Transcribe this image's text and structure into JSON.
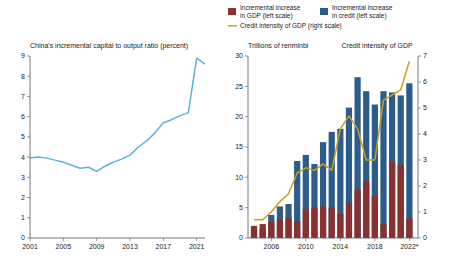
{
  "chart_data": [
    {
      "type": "line",
      "title": "China's incremental capital to output ratio (percent)",
      "x": [
        2001,
        2002,
        2003,
        2004,
        2005,
        2006,
        2007,
        2008,
        2009,
        2010,
        2011,
        2012,
        2013,
        2014,
        2015,
        2016,
        2017,
        2018,
        2019,
        2020,
        2021,
        2022
      ],
      "values": [
        3.95,
        4.0,
        3.95,
        3.85,
        3.75,
        3.6,
        3.45,
        3.5,
        3.3,
        3.55,
        3.75,
        3.9,
        4.1,
        4.5,
        4.8,
        5.2,
        5.7,
        5.85,
        6.05,
        6.2,
        8.9,
        8.6
      ],
      "color": "#5ab4d6",
      "xlim": [
        2001,
        2022
      ],
      "xticks": [
        2001,
        2005,
        2009,
        2013,
        2017,
        2021
      ],
      "ylim": [
        0,
        9
      ],
      "yticks": [
        0,
        1,
        2,
        3,
        4,
        5,
        6,
        7,
        8,
        9
      ],
      "grid": false
    },
    {
      "type": "bar",
      "ylabel": "Trillions of renminbi",
      "y2label": "Credit intensity of GDP",
      "x": [
        2004,
        2005,
        2006,
        2007,
        2008,
        2009,
        2010,
        2011,
        2012,
        2013,
        2014,
        2015,
        2016,
        2017,
        2018,
        2019,
        2020,
        2021,
        2022
      ],
      "series": [
        {
          "name": "Incremental increase\nin GDP (left scale)",
          "type": "bar",
          "color": "#8b3030",
          "values": [
            2.0,
            2.3,
            2.7,
            3.1,
            3.3,
            2.8,
            4.8,
            5.0,
            5.2,
            5.0,
            4.0,
            5.8,
            8.0,
            9.3,
            7.0,
            2.3,
            12.5,
            12.0,
            3.2
          ]
        },
        {
          "name": "Incremental increase\nin credit (left scale)",
          "type": "bar",
          "color": "#2b5c8a",
          "values": [
            1.4,
            1.5,
            3.8,
            5.2,
            5.6,
            12.7,
            13.7,
            12.2,
            15.8,
            17.5,
            18.0,
            21.5,
            26.5,
            24.2,
            22.0,
            24.2,
            24.0,
            23.5,
            25.5
          ]
        },
        {
          "name": "Credit intensity of GDP (right scale)",
          "type": "line",
          "axis": "y2",
          "color": "#c8a020",
          "values": [
            0.7,
            0.7,
            1.0,
            1.4,
            1.7,
            2.5,
            2.7,
            2.6,
            2.85,
            2.6,
            4.2,
            4.7,
            4.2,
            3.0,
            3.0,
            5.3,
            5.5,
            5.7,
            6.8
          ]
        }
      ],
      "xlim": [
        2003.3,
        2023.0
      ],
      "xticks": [
        2006,
        2010,
        2014,
        2018,
        {
          "value": 2022,
          "label": "2022*"
        }
      ],
      "ylim": [
        0,
        30
      ],
      "yticks": [
        0,
        5,
        10,
        15,
        20,
        25,
        30
      ],
      "y2lim": [
        0,
        7
      ],
      "y2ticks": [
        0,
        1,
        2,
        3,
        4,
        5,
        6,
        7
      ],
      "legend": "top",
      "grid": false
    }
  ]
}
